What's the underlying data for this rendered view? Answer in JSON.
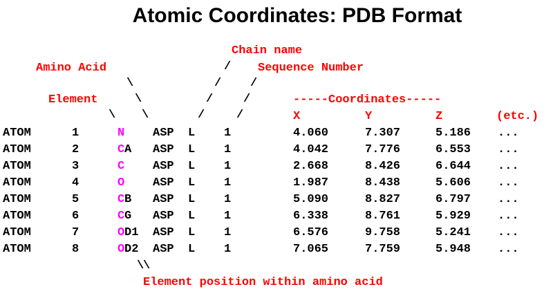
{
  "title": "Atomic Coordinates: PDB Format",
  "labels": {
    "chain_name": "Chain name",
    "amino_acid": "Amino Acid",
    "sequence_number": "Sequence Number",
    "element": "Element",
    "coordinates": "-----Coordinates-----",
    "x": "X",
    "y": "Y",
    "z": "Z",
    "etc": "(etc.)",
    "element_position": "Element position within amino acid"
  },
  "colors": {
    "label": "#ff0000",
    "element_highlight": "#ff00ff",
    "text": "#000000"
  },
  "rows": [
    {
      "record": "ATOM",
      "serial": "1",
      "element": "N",
      "position": "",
      "residue": "ASP",
      "chain": "L",
      "seq": "1",
      "x": "4.060",
      "y": "7.307",
      "z": "5.186",
      "etc": "..."
    },
    {
      "record": "ATOM",
      "serial": "2",
      "element": "C",
      "position": "A",
      "residue": "ASP",
      "chain": "L",
      "seq": "1",
      "x": "4.042",
      "y": "7.776",
      "z": "6.553",
      "etc": "..."
    },
    {
      "record": "ATOM",
      "serial": "3",
      "element": "C",
      "position": "",
      "residue": "ASP",
      "chain": "L",
      "seq": "1",
      "x": "2.668",
      "y": "8.426",
      "z": "6.644",
      "etc": "..."
    },
    {
      "record": "ATOM",
      "serial": "4",
      "element": "O",
      "position": "",
      "residue": "ASP",
      "chain": "L",
      "seq": "1",
      "x": "1.987",
      "y": "8.438",
      "z": "5.606",
      "etc": "..."
    },
    {
      "record": "ATOM",
      "serial": "5",
      "element": "C",
      "position": "B",
      "residue": "ASP",
      "chain": "L",
      "seq": "1",
      "x": "5.090",
      "y": "8.827",
      "z": "6.797",
      "etc": "..."
    },
    {
      "record": "ATOM",
      "serial": "6",
      "element": "C",
      "position": "G",
      "residue": "ASP",
      "chain": "L",
      "seq": "1",
      "x": "6.338",
      "y": "8.761",
      "z": "5.929",
      "etc": "..."
    },
    {
      "record": "ATOM",
      "serial": "7",
      "element": "O",
      "position": "D1",
      "residue": "ASP",
      "chain": "L",
      "seq": "1",
      "x": "6.576",
      "y": "9.758",
      "z": "5.241",
      "etc": "..."
    },
    {
      "record": "ATOM",
      "serial": "8",
      "element": "O",
      "position": "D2",
      "residue": "ASP",
      "chain": "L",
      "seq": "1",
      "x": "7.065",
      "y": "7.759",
      "z": "5.948",
      "etc": "..."
    }
  ]
}
